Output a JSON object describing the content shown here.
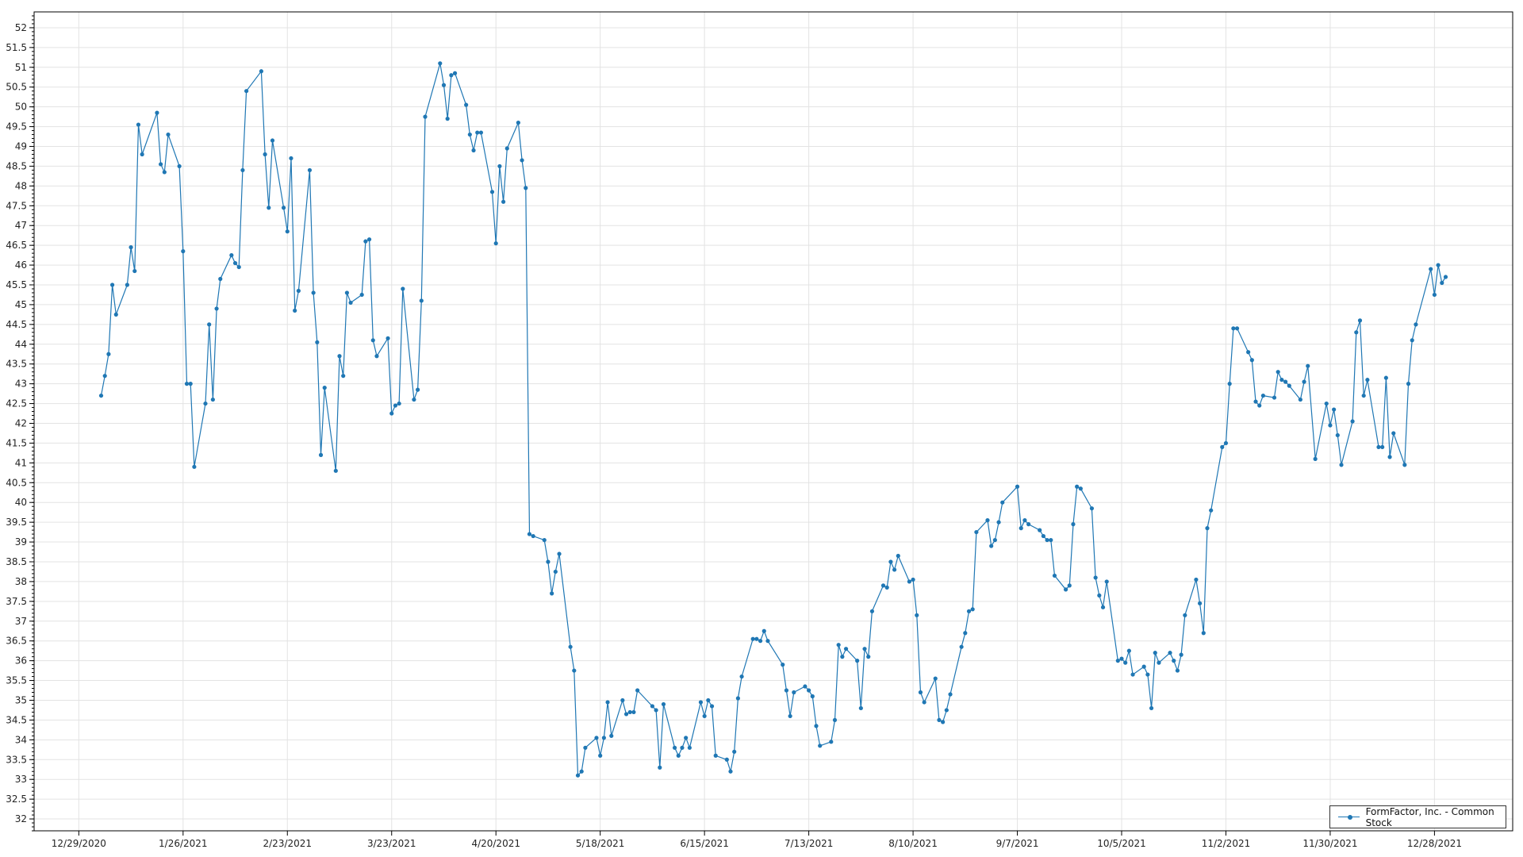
{
  "chart_data": {
    "type": "line",
    "title": "",
    "xlabel": "",
    "ylabel": "",
    "ylim": [
      31.7,
      52.4
    ],
    "xlim": [
      "2020-12-17",
      "2022-01-18"
    ],
    "yticks_step": 0.5,
    "x_tick_labels": [
      "12/29/2020",
      "1/26/2021",
      "2/23/2021",
      "3/23/2021",
      "4/20/2021",
      "5/18/2021",
      "6/15/2021",
      "7/13/2021",
      "8/10/2021",
      "9/7/2021",
      "10/5/2021",
      "11/2/2021",
      "11/30/2021",
      "12/28/2021"
    ],
    "grid": true,
    "legend_position": "bottom-right",
    "series": [
      {
        "name": "FormFactor, Inc. - Common Stock",
        "color": "#1f77b4",
        "points": [
          [
            "2021-01-04",
            42.7
          ],
          [
            "2021-01-05",
            43.2
          ],
          [
            "2021-01-06",
            43.75
          ],
          [
            "2021-01-07",
            45.5
          ],
          [
            "2021-01-08",
            44.75
          ],
          [
            "2021-01-11",
            45.5
          ],
          [
            "2021-01-12",
            46.45
          ],
          [
            "2021-01-13",
            45.85
          ],
          [
            "2021-01-14",
            49.55
          ],
          [
            "2021-01-15",
            48.8
          ],
          [
            "2021-01-19",
            49.85
          ],
          [
            "2021-01-20",
            48.55
          ],
          [
            "2021-01-21",
            48.35
          ],
          [
            "2021-01-22",
            49.3
          ],
          [
            "2021-01-25",
            48.5
          ],
          [
            "2021-01-26",
            46.35
          ],
          [
            "2021-01-27",
            43.0
          ],
          [
            "2021-01-28",
            43.0
          ],
          [
            "2021-01-29",
            40.9
          ],
          [
            "2021-02-01",
            42.5
          ],
          [
            "2021-02-02",
            44.5
          ],
          [
            "2021-02-03",
            42.6
          ],
          [
            "2021-02-04",
            44.9
          ],
          [
            "2021-02-05",
            45.65
          ],
          [
            "2021-02-08",
            46.25
          ],
          [
            "2021-02-09",
            46.05
          ],
          [
            "2021-02-10",
            45.95
          ],
          [
            "2021-02-11",
            48.4
          ],
          [
            "2021-02-12",
            50.4
          ],
          [
            "2021-02-16",
            50.9
          ],
          [
            "2021-02-17",
            48.8
          ],
          [
            "2021-02-18",
            47.45
          ],
          [
            "2021-02-19",
            49.15
          ],
          [
            "2021-02-22",
            47.45
          ],
          [
            "2021-02-23",
            46.85
          ],
          [
            "2021-02-24",
            48.7
          ],
          [
            "2021-02-25",
            44.85
          ],
          [
            "2021-02-26",
            45.35
          ],
          [
            "2021-03-01",
            48.4
          ],
          [
            "2021-03-02",
            45.3
          ],
          [
            "2021-03-03",
            44.05
          ],
          [
            "2021-03-04",
            41.2
          ],
          [
            "2021-03-05",
            42.9
          ],
          [
            "2021-03-08",
            40.8
          ],
          [
            "2021-03-09",
            43.7
          ],
          [
            "2021-03-10",
            43.2
          ],
          [
            "2021-03-11",
            45.3
          ],
          [
            "2021-03-12",
            45.05
          ],
          [
            "2021-03-15",
            45.25
          ],
          [
            "2021-03-16",
            46.6
          ],
          [
            "2021-03-17",
            46.65
          ],
          [
            "2021-03-18",
            44.1
          ],
          [
            "2021-03-19",
            43.7
          ],
          [
            "2021-03-22",
            44.15
          ],
          [
            "2021-03-23",
            42.25
          ],
          [
            "2021-03-24",
            42.45
          ],
          [
            "2021-03-25",
            42.5
          ],
          [
            "2021-03-26",
            45.4
          ],
          [
            "2021-03-29",
            42.6
          ],
          [
            "2021-03-30",
            42.85
          ],
          [
            "2021-03-31",
            45.1
          ],
          [
            "2021-04-01",
            49.75
          ],
          [
            "2021-04-05",
            51.1
          ],
          [
            "2021-04-06",
            50.55
          ],
          [
            "2021-04-07",
            49.7
          ],
          [
            "2021-04-08",
            50.8
          ],
          [
            "2021-04-09",
            50.85
          ],
          [
            "2021-04-12",
            50.05
          ],
          [
            "2021-04-13",
            49.3
          ],
          [
            "2021-04-14",
            48.9
          ],
          [
            "2021-04-15",
            49.35
          ],
          [
            "2021-04-16",
            49.35
          ],
          [
            "2021-04-19",
            47.85
          ],
          [
            "2021-04-20",
            46.55
          ],
          [
            "2021-04-21",
            48.5
          ],
          [
            "2021-04-22",
            47.6
          ],
          [
            "2021-04-23",
            48.95
          ],
          [
            "2021-04-26",
            49.6
          ],
          [
            "2021-04-27",
            48.65
          ],
          [
            "2021-04-28",
            47.95
          ],
          [
            "2021-04-29",
            39.2
          ],
          [
            "2021-04-30",
            39.15
          ],
          [
            "2021-05-03",
            39.05
          ],
          [
            "2021-05-04",
            38.5
          ],
          [
            "2021-05-05",
            37.7
          ],
          [
            "2021-05-06",
            38.25
          ],
          [
            "2021-05-07",
            38.7
          ],
          [
            "2021-05-10",
            36.35
          ],
          [
            "2021-05-11",
            35.75
          ],
          [
            "2021-05-12",
            33.1
          ],
          [
            "2021-05-13",
            33.2
          ],
          [
            "2021-05-14",
            33.8
          ],
          [
            "2021-05-17",
            34.05
          ],
          [
            "2021-05-18",
            33.6
          ],
          [
            "2021-05-19",
            34.05
          ],
          [
            "2021-05-20",
            34.95
          ],
          [
            "2021-05-21",
            34.1
          ],
          [
            "2021-05-24",
            35.0
          ],
          [
            "2021-05-25",
            34.65
          ],
          [
            "2021-05-26",
            34.7
          ],
          [
            "2021-05-27",
            34.7
          ],
          [
            "2021-05-28",
            35.25
          ],
          [
            "2021-06-01",
            34.85
          ],
          [
            "2021-06-02",
            34.75
          ],
          [
            "2021-06-03",
            33.3
          ],
          [
            "2021-06-04",
            34.9
          ],
          [
            "2021-06-07",
            33.8
          ],
          [
            "2021-06-08",
            33.6
          ],
          [
            "2021-06-09",
            33.8
          ],
          [
            "2021-06-10",
            34.05
          ],
          [
            "2021-06-11",
            33.8
          ],
          [
            "2021-06-14",
            34.95
          ],
          [
            "2021-06-15",
            34.6
          ],
          [
            "2021-06-16",
            35.0
          ],
          [
            "2021-06-17",
            34.85
          ],
          [
            "2021-06-18",
            33.6
          ],
          [
            "2021-06-21",
            33.5
          ],
          [
            "2021-06-22",
            33.2
          ],
          [
            "2021-06-23",
            33.7
          ],
          [
            "2021-06-24",
            35.05
          ],
          [
            "2021-06-25",
            35.6
          ],
          [
            "2021-06-28",
            36.55
          ],
          [
            "2021-06-29",
            36.55
          ],
          [
            "2021-06-30",
            36.5
          ],
          [
            "2021-07-01",
            36.75
          ],
          [
            "2021-07-02",
            36.5
          ],
          [
            "2021-07-06",
            35.9
          ],
          [
            "2021-07-07",
            35.25
          ],
          [
            "2021-07-08",
            34.6
          ],
          [
            "2021-07-09",
            35.2
          ],
          [
            "2021-07-12",
            35.35
          ],
          [
            "2021-07-13",
            35.25
          ],
          [
            "2021-07-14",
            35.1
          ],
          [
            "2021-07-15",
            34.35
          ],
          [
            "2021-07-16",
            33.85
          ],
          [
            "2021-07-19",
            33.95
          ],
          [
            "2021-07-20",
            34.5
          ],
          [
            "2021-07-21",
            36.4
          ],
          [
            "2021-07-22",
            36.1
          ],
          [
            "2021-07-23",
            36.3
          ],
          [
            "2021-07-26",
            36.0
          ],
          [
            "2021-07-27",
            34.8
          ],
          [
            "2021-07-28",
            36.3
          ],
          [
            "2021-07-29",
            36.1
          ],
          [
            "2021-07-30",
            37.25
          ],
          [
            "2021-08-02",
            37.9
          ],
          [
            "2021-08-03",
            37.85
          ],
          [
            "2021-08-04",
            38.5
          ],
          [
            "2021-08-05",
            38.3
          ],
          [
            "2021-08-06",
            38.65
          ],
          [
            "2021-08-09",
            38.0
          ],
          [
            "2021-08-10",
            38.05
          ],
          [
            "2021-08-11",
            37.15
          ],
          [
            "2021-08-12",
            35.2
          ],
          [
            "2021-08-13",
            34.95
          ],
          [
            "2021-08-16",
            35.55
          ],
          [
            "2021-08-17",
            34.5
          ],
          [
            "2021-08-18",
            34.45
          ],
          [
            "2021-08-19",
            34.75
          ],
          [
            "2021-08-20",
            35.15
          ],
          [
            "2021-08-23",
            36.35
          ],
          [
            "2021-08-24",
            36.7
          ],
          [
            "2021-08-25",
            37.25
          ],
          [
            "2021-08-26",
            37.3
          ],
          [
            "2021-08-27",
            39.25
          ],
          [
            "2021-08-30",
            39.55
          ],
          [
            "2021-08-31",
            38.9
          ],
          [
            "2021-09-01",
            39.05
          ],
          [
            "2021-09-02",
            39.5
          ],
          [
            "2021-09-03",
            40.0
          ],
          [
            "2021-09-07",
            40.4
          ],
          [
            "2021-09-08",
            39.35
          ],
          [
            "2021-09-09",
            39.55
          ],
          [
            "2021-09-10",
            39.45
          ],
          [
            "2021-09-13",
            39.3
          ],
          [
            "2021-09-14",
            39.15
          ],
          [
            "2021-09-15",
            39.05
          ],
          [
            "2021-09-16",
            39.05
          ],
          [
            "2021-09-17",
            38.15
          ],
          [
            "2021-09-20",
            37.8
          ],
          [
            "2021-09-21",
            37.9
          ],
          [
            "2021-09-22",
            39.45
          ],
          [
            "2021-09-23",
            40.4
          ],
          [
            "2021-09-24",
            40.35
          ],
          [
            "2021-09-27",
            39.85
          ],
          [
            "2021-09-28",
            38.1
          ],
          [
            "2021-09-29",
            37.65
          ],
          [
            "2021-09-30",
            37.35
          ],
          [
            "2021-10-01",
            38.0
          ],
          [
            "2021-10-04",
            36.0
          ],
          [
            "2021-10-05",
            36.05
          ],
          [
            "2021-10-06",
            35.95
          ],
          [
            "2021-10-07",
            36.25
          ],
          [
            "2021-10-08",
            35.65
          ],
          [
            "2021-10-11",
            35.85
          ],
          [
            "2021-10-12",
            35.65
          ],
          [
            "2021-10-13",
            34.8
          ],
          [
            "2021-10-14",
            36.2
          ],
          [
            "2021-10-15",
            35.95
          ],
          [
            "2021-10-18",
            36.2
          ],
          [
            "2021-10-19",
            36.0
          ],
          [
            "2021-10-20",
            35.75
          ],
          [
            "2021-10-21",
            36.15
          ],
          [
            "2021-10-22",
            37.15
          ],
          [
            "2021-10-25",
            38.05
          ],
          [
            "2021-10-26",
            37.45
          ],
          [
            "2021-10-27",
            36.7
          ],
          [
            "2021-10-28",
            39.35
          ],
          [
            "2021-10-29",
            39.8
          ],
          [
            "2021-11-01",
            41.4
          ],
          [
            "2021-11-02",
            41.5
          ],
          [
            "2021-11-03",
            43.0
          ],
          [
            "2021-11-04",
            44.4
          ],
          [
            "2021-11-05",
            44.4
          ],
          [
            "2021-11-08",
            43.8
          ],
          [
            "2021-11-09",
            43.6
          ],
          [
            "2021-11-10",
            42.55
          ],
          [
            "2021-11-11",
            42.45
          ],
          [
            "2021-11-12",
            42.7
          ],
          [
            "2021-11-15",
            42.65
          ],
          [
            "2021-11-16",
            43.3
          ],
          [
            "2021-11-17",
            43.1
          ],
          [
            "2021-11-18",
            43.05
          ],
          [
            "2021-11-19",
            42.95
          ],
          [
            "2021-11-22",
            42.6
          ],
          [
            "2021-11-23",
            43.05
          ],
          [
            "2021-11-24",
            43.45
          ],
          [
            "2021-11-26",
            41.1
          ],
          [
            "2021-11-29",
            42.5
          ],
          [
            "2021-11-30",
            41.95
          ],
          [
            "2021-12-01",
            42.35
          ],
          [
            "2021-12-02",
            41.7
          ],
          [
            "2021-12-03",
            40.95
          ],
          [
            "2021-12-06",
            42.05
          ],
          [
            "2021-12-07",
            44.3
          ],
          [
            "2021-12-08",
            44.6
          ],
          [
            "2021-12-09",
            42.7
          ],
          [
            "2021-12-10",
            43.1
          ],
          [
            "2021-12-13",
            41.4
          ],
          [
            "2021-12-14",
            41.4
          ],
          [
            "2021-12-15",
            43.15
          ],
          [
            "2021-12-16",
            41.15
          ],
          [
            "2021-12-17",
            41.75
          ],
          [
            "2021-12-20",
            40.95
          ],
          [
            "2021-12-21",
            43.0
          ],
          [
            "2021-12-22",
            44.1
          ],
          [
            "2021-12-23",
            44.5
          ],
          [
            "2021-12-27",
            45.9
          ],
          [
            "2021-12-28",
            45.25
          ],
          [
            "2021-12-29",
            46.0
          ],
          [
            "2021-12-30",
            45.55
          ],
          [
            "2021-12-31",
            45.7
          ]
        ]
      }
    ]
  }
}
